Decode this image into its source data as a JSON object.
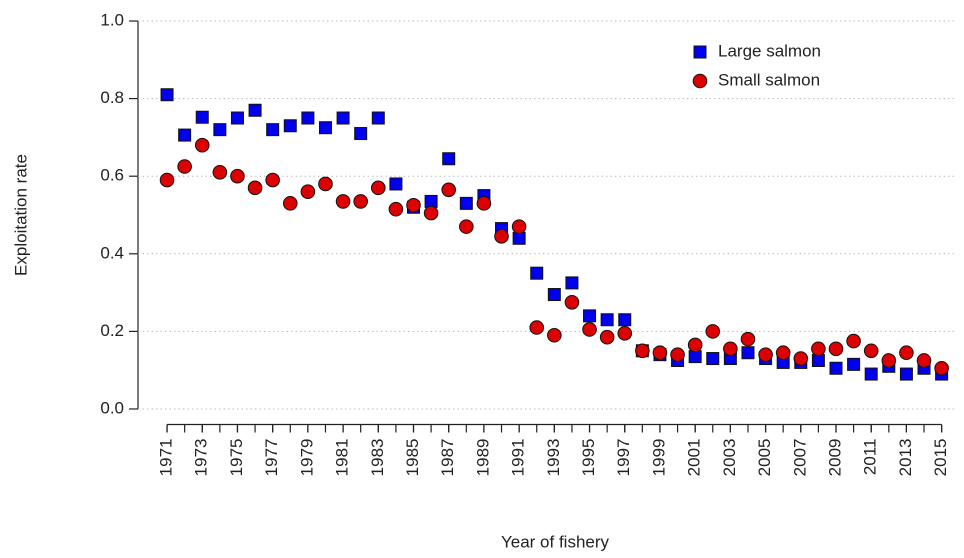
{
  "chart_data": {
    "type": "scatter",
    "x_label": "Year of fishery",
    "y_label": "Exploitation rate",
    "x": [
      1971,
      1972,
      1973,
      1974,
      1975,
      1976,
      1977,
      1978,
      1979,
      1980,
      1981,
      1982,
      1983,
      1984,
      1985,
      1986,
      1987,
      1988,
      1989,
      1990,
      1991,
      1992,
      1993,
      1994,
      1995,
      1996,
      1997,
      1998,
      1999,
      2000,
      2001,
      2002,
      2003,
      2004,
      2005,
      2006,
      2007,
      2008,
      2009,
      2010,
      2011,
      2012,
      2013,
      2014,
      2015
    ],
    "series": [
      {
        "name": "Large salmon",
        "color": "#0000ee",
        "marker": "square",
        "values": [
          0.81,
          0.706,
          0.752,
          0.72,
          0.75,
          0.77,
          0.72,
          0.73,
          0.75,
          0.725,
          0.75,
          0.71,
          0.75,
          0.58,
          0.52,
          0.535,
          0.645,
          0.53,
          0.55,
          0.465,
          0.44,
          0.35,
          0.295,
          0.325,
          0.24,
          0.23,
          0.23,
          0.15,
          0.14,
          0.125,
          0.135,
          0.13,
          0.13,
          0.145,
          0.13,
          0.12,
          0.12,
          0.125,
          0.105,
          0.115,
          0.09,
          0.11,
          0.09,
          0.105,
          0.09
        ]
      },
      {
        "name": "Small salmon",
        "color": "#dd0000",
        "marker": "circle",
        "values": [
          0.59,
          0.625,
          0.68,
          0.61,
          0.6,
          0.57,
          0.59,
          0.53,
          0.56,
          0.58,
          0.535,
          0.535,
          0.57,
          0.515,
          0.525,
          0.505,
          0.565,
          0.47,
          0.53,
          0.445,
          0.47,
          0.21,
          0.19,
          0.275,
          0.205,
          0.185,
          0.195,
          0.15,
          0.145,
          0.14,
          0.165,
          0.2,
          0.155,
          0.18,
          0.14,
          0.145,
          0.13,
          0.155,
          0.155,
          0.175,
          0.15,
          0.125,
          0.145,
          0.125,
          0.105
        ]
      }
    ],
    "xlim": [
      1969.35,
      2015.76
    ],
    "xticks": [
      1971,
      1973,
      1975,
      1977,
      1979,
      1981,
      1983,
      1985,
      1987,
      1989,
      1991,
      1993,
      1995,
      1997,
      1999,
      2001,
      2003,
      2005,
      2007,
      2009,
      2011,
      2013,
      2015
    ],
    "ylim": [
      -0.04,
      1.04
    ],
    "yticks": [
      {
        "value": 0,
        "label": "0.0"
      },
      0.2,
      0.4,
      0.6,
      0.8,
      {
        "value": 1,
        "label": "1.0"
      }
    ],
    "grid": true,
    "legend": "top-right"
  }
}
